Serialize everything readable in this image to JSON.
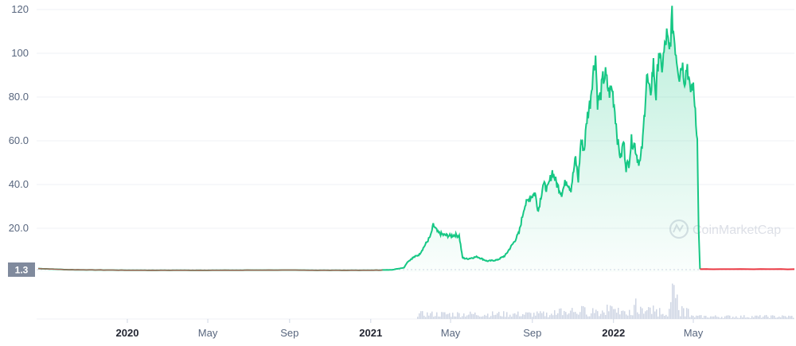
{
  "chart_data": {
    "type": "area",
    "title": "",
    "xlabel": "",
    "ylabel": "",
    "ylim": [
      0,
      120
    ],
    "y_ticks": [
      "120",
      "100",
      "80.0",
      "60.0",
      "40.0",
      "20.0"
    ],
    "y_tick_values": [
      120,
      100,
      80,
      60,
      40,
      20
    ],
    "x_ticks": [
      {
        "label": "2020",
        "date": "2020-01-01",
        "bold": true
      },
      {
        "label": "May",
        "date": "2020-05-01",
        "bold": false
      },
      {
        "label": "Sep",
        "date": "2020-09-01",
        "bold": false
      },
      {
        "label": "2021",
        "date": "2021-01-01",
        "bold": true
      },
      {
        "label": "May",
        "date": "2021-05-01",
        "bold": false
      },
      {
        "label": "Sep",
        "date": "2021-09-01",
        "bold": false
      },
      {
        "label": "2022",
        "date": "2022-01-01",
        "bold": true
      },
      {
        "label": "May",
        "date": "2022-05-01",
        "bold": false
      }
    ],
    "current_price_label": "1.3",
    "current_price": 1.3,
    "grid": true,
    "watermark": "CoinMarketCap",
    "colors": {
      "up": "#16c784",
      "down": "#ea3943",
      "fill": "#16c784",
      "grid": "#eff2f5",
      "tick_text": "#58667e",
      "badge": "#808a9d",
      "volume": "#cfd6e4"
    },
    "series": [
      {
        "values": [
          [
            "2019-08-20",
            1.6
          ],
          [
            "2019-10-01",
            1.1
          ],
          [
            "2019-12-01",
            0.9
          ],
          [
            "2020-02-01",
            0.8
          ],
          [
            "2020-05-01",
            0.8
          ],
          [
            "2020-08-01",
            0.9
          ],
          [
            "2020-11-01",
            0.8
          ],
          [
            "2021-01-01",
            0.8
          ],
          [
            "2021-02-01",
            1.0
          ],
          [
            "2021-02-20",
            2.0
          ],
          [
            "2021-02-25",
            4.5
          ],
          [
            "2021-03-05",
            6.5
          ],
          [
            "2021-03-15",
            8.0
          ],
          [
            "2021-03-25",
            13.0
          ],
          [
            "2021-04-01",
            16.5
          ],
          [
            "2021-04-05",
            21.5
          ],
          [
            "2021-04-12",
            18.0
          ],
          [
            "2021-04-20",
            17.0
          ],
          [
            "2021-05-01",
            16.5
          ],
          [
            "2021-05-08",
            17.0
          ],
          [
            "2021-05-14",
            16.5
          ],
          [
            "2021-05-19",
            6.5
          ],
          [
            "2021-05-26",
            6.0
          ],
          [
            "2021-06-10",
            7.0
          ],
          [
            "2021-06-25",
            5.0
          ],
          [
            "2021-07-10",
            5.5
          ],
          [
            "2021-07-22",
            7.5
          ],
          [
            "2021-08-05",
            14.0
          ],
          [
            "2021-08-12",
            18.0
          ],
          [
            "2021-08-20",
            30.0
          ],
          [
            "2021-08-28",
            34.0
          ],
          [
            "2021-09-05",
            36.0
          ],
          [
            "2021-09-10",
            28.0
          ],
          [
            "2021-09-17",
            40.0
          ],
          [
            "2021-09-24",
            38.0
          ],
          [
            "2021-10-01",
            46.0
          ],
          [
            "2021-10-08",
            40.0
          ],
          [
            "2021-10-15",
            36.0
          ],
          [
            "2021-10-22",
            42.0
          ],
          [
            "2021-10-29",
            38.0
          ],
          [
            "2021-11-05",
            52.0
          ],
          [
            "2021-11-09",
            42.0
          ],
          [
            "2021-11-13",
            60.0
          ],
          [
            "2021-11-18",
            56.0
          ],
          [
            "2021-11-22",
            70.0
          ],
          [
            "2021-11-27",
            78.0
          ],
          [
            "2021-11-30",
            88.0
          ],
          [
            "2021-12-05",
            99.0
          ],
          [
            "2021-12-08",
            78.0
          ],
          [
            "2021-12-12",
            80.0
          ],
          [
            "2021-12-16",
            88.0
          ],
          [
            "2021-12-20",
            90.0
          ],
          [
            "2021-12-25",
            82.0
          ],
          [
            "2021-12-30",
            84.0
          ],
          [
            "2022-01-03",
            74.0
          ],
          [
            "2022-01-08",
            58.0
          ],
          [
            "2022-01-12",
            52.0
          ],
          [
            "2022-01-16",
            60.0
          ],
          [
            "2022-01-20",
            48.0
          ],
          [
            "2022-01-24",
            50.0
          ],
          [
            "2022-01-28",
            60.0
          ],
          [
            "2022-02-02",
            58.0
          ],
          [
            "2022-02-06",
            52.0
          ],
          [
            "2022-02-10",
            50.0
          ],
          [
            "2022-02-14",
            60.0
          ],
          [
            "2022-02-20",
            90.0
          ],
          [
            "2022-02-25",
            80.0
          ],
          [
            "2022-03-02",
            95.0
          ],
          [
            "2022-03-06",
            80.0
          ],
          [
            "2022-03-10",
            102.0
          ],
          [
            "2022-03-14",
            92.0
          ],
          [
            "2022-03-18",
            100.0
          ],
          [
            "2022-03-22",
            108.0
          ],
          [
            "2022-03-26",
            100.0
          ],
          [
            "2022-03-30",
            116.0
          ],
          [
            "2022-04-02",
            108.0
          ],
          [
            "2022-04-06",
            98.0
          ],
          [
            "2022-04-10",
            90.0
          ],
          [
            "2022-04-14",
            96.0
          ],
          [
            "2022-04-18",
            88.0
          ],
          [
            "2022-04-22",
            95.0
          ],
          [
            "2022-04-26",
            82.0
          ],
          [
            "2022-04-30",
            86.0
          ],
          [
            "2022-05-04",
            75.0
          ],
          [
            "2022-05-07",
            60.0
          ],
          [
            "2022-05-09",
            20.0
          ],
          [
            "2022-05-11",
            1.3
          ],
          [
            "2022-09-30",
            1.3
          ]
        ]
      }
    ]
  }
}
